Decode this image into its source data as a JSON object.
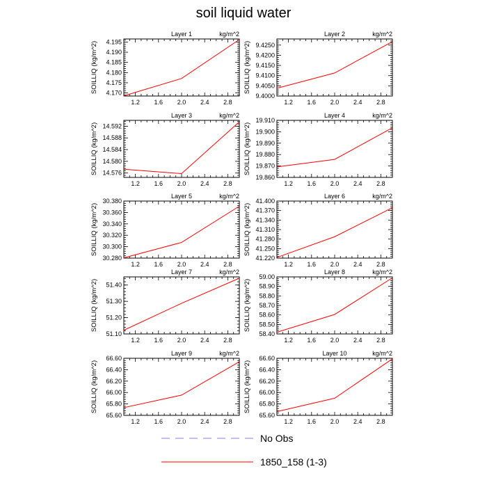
{
  "title": "soil liquid water",
  "legend": {
    "entries": [
      {
        "label": "No Obs",
        "color": "#8080ff",
        "dash": true
      },
      {
        "label": "1850_158 (1-3)",
        "color": "#ff0000",
        "dash": false
      }
    ]
  },
  "chart_data": [
    {
      "type": "line",
      "title": "Layer 1",
      "units": "kg/m^2",
      "ylabel": "SOILLIQ  (kg/m^2)",
      "xlim": [
        1.0,
        3.0
      ],
      "xticks": [
        "1.2",
        "1.6",
        "2.0",
        "2.4",
        "2.8"
      ],
      "ylim": [
        4.1685,
        4.1965
      ],
      "yticks": [
        "4.170",
        "4.175",
        "4.180",
        "4.185",
        "4.190",
        "4.195"
      ],
      "series": [
        {
          "x": [
            1,
            2,
            3
          ],
          "y": [
            4.1686,
            4.1771,
            4.1962
          ]
        }
      ]
    },
    {
      "type": "line",
      "title": "Layer 2",
      "units": "kg/m^2",
      "ylabel": "SOILLIQ  (kg/m^2)",
      "xlim": [
        1.0,
        3.0
      ],
      "xticks": [
        "1.2",
        "1.6",
        "2.0",
        "2.4",
        "2.8"
      ],
      "ylim": [
        9.4,
        9.428
      ],
      "yticks": [
        "9.4000",
        "9.4050",
        "9.4100",
        "9.4150",
        "9.4200",
        "9.4250"
      ],
      "series": [
        {
          "x": [
            1,
            2,
            3
          ],
          "y": [
            9.4038,
            9.4113,
            9.4267
          ]
        }
      ]
    },
    {
      "type": "line",
      "title": "Layer 3",
      "units": "kg/m^2",
      "ylabel": "SOILLIQ  (kg/m^2)",
      "xlim": [
        1.0,
        3.0
      ],
      "xticks": [
        "1.2",
        "1.6",
        "2.0",
        "2.4",
        "2.8"
      ],
      "ylim": [
        14.5745,
        14.594
      ],
      "yticks": [
        "14.576",
        "14.580",
        "14.584",
        "14.588",
        "14.592"
      ],
      "series": [
        {
          "x": [
            1,
            2,
            3
          ],
          "y": [
            14.5773,
            14.5758,
            14.5935
          ]
        }
      ]
    },
    {
      "type": "line",
      "title": "Layer 4",
      "units": "kg/m^2",
      "ylabel": "SOILLIQ  (kg/m^2)",
      "xlim": [
        1.0,
        3.0
      ],
      "xticks": [
        "1.2",
        "1.6",
        "2.0",
        "2.4",
        "2.8"
      ],
      "ylim": [
        19.86,
        19.91
      ],
      "yticks": [
        "19.860",
        "19.870",
        "19.880",
        "19.890",
        "19.900",
        "19.910"
      ],
      "series": [
        {
          "x": [
            1,
            2,
            3
          ],
          "y": [
            19.8692,
            19.8758,
            19.9035
          ]
        }
      ]
    },
    {
      "type": "line",
      "title": "Layer 5",
      "units": "kg/m^2",
      "ylabel": "SOILLIQ  (kg/m^2)",
      "xlim": [
        1.0,
        3.0
      ],
      "xticks": [
        "1.2",
        "1.6",
        "2.0",
        "2.4",
        "2.8"
      ],
      "ylim": [
        30.28,
        30.38
      ],
      "yticks": [
        "30.280",
        "30.300",
        "30.320",
        "30.340",
        "30.360",
        "30.380"
      ],
      "series": [
        {
          "x": [
            1,
            2,
            3
          ],
          "y": [
            30.2805,
            30.3075,
            30.371
          ]
        }
      ]
    },
    {
      "type": "line",
      "title": "Layer 6",
      "units": "kg/m^2",
      "ylabel": "SOILLIQ  (kg/m^2)",
      "xlim": [
        1.0,
        3.0
      ],
      "xticks": [
        "1.2",
        "1.6",
        "2.0",
        "2.4",
        "2.8"
      ],
      "ylim": [
        41.22,
        41.4
      ],
      "yticks": [
        "41.220",
        "41.250",
        "41.280",
        "41.310",
        "41.340",
        "41.370",
        "41.400"
      ],
      "series": [
        {
          "x": [
            1,
            2,
            3
          ],
          "y": [
            41.222,
            41.2875,
            41.379
          ]
        }
      ]
    },
    {
      "type": "line",
      "title": "Layer 7",
      "units": "kg/m^2",
      "ylabel": "SOILLIQ  (kg/m^2)",
      "xlim": [
        1.0,
        3.0
      ],
      "xticks": [
        "1.2",
        "1.6",
        "2.0",
        "2.4",
        "2.8"
      ],
      "ylim": [
        51.1,
        51.45
      ],
      "yticks": [
        "51.10",
        "51.20",
        "51.30",
        "51.40"
      ],
      "series": [
        {
          "x": [
            1,
            2,
            3
          ],
          "y": [
            51.123,
            51.288,
            51.442
          ]
        }
      ]
    },
    {
      "type": "line",
      "title": "Layer 8",
      "units": "kg/m^2",
      "ylabel": "SOILLIQ  (kg/m^2)",
      "xlim": [
        1.0,
        3.0
      ],
      "xticks": [
        "1.2",
        "1.6",
        "2.0",
        "2.4",
        "2.8"
      ],
      "ylim": [
        58.4,
        59.0
      ],
      "yticks": [
        "58.40",
        "58.50",
        "58.60",
        "58.70",
        "58.80",
        "58.90",
        "59.00"
      ],
      "series": [
        {
          "x": [
            1,
            2,
            3
          ],
          "y": [
            58.418,
            58.605,
            58.99
          ]
        }
      ]
    },
    {
      "type": "line",
      "title": "Layer 9",
      "units": "kg/m^2",
      "ylabel": "SOILLIQ  (kg/m^2)",
      "xlim": [
        1.0,
        3.0
      ],
      "xticks": [
        "1.2",
        "1.6",
        "2.0",
        "2.4",
        "2.8"
      ],
      "ylim": [
        65.6,
        66.6
      ],
      "yticks": [
        "65.60",
        "65.80",
        "66.00",
        "66.20",
        "66.40",
        "66.60"
      ],
      "series": [
        {
          "x": [
            1,
            2,
            3
          ],
          "y": [
            65.735,
            65.955,
            66.54
          ]
        }
      ]
    },
    {
      "type": "line",
      "title": "Layer 10",
      "units": "kg/m^2",
      "ylabel": "SOILLIQ  (kg/m^2)",
      "xlim": [
        1.0,
        3.0
      ],
      "xticks": [
        "1.2",
        "1.6",
        "2.0",
        "2.4",
        "2.8"
      ],
      "ylim": [
        65.6,
        66.6
      ],
      "yticks": [
        "65.60",
        "65.80",
        "66.00",
        "66.20",
        "66.40",
        "66.60"
      ],
      "series": [
        {
          "x": [
            1,
            2,
            3
          ],
          "y": [
            65.665,
            65.9,
            66.59
          ]
        }
      ]
    }
  ]
}
